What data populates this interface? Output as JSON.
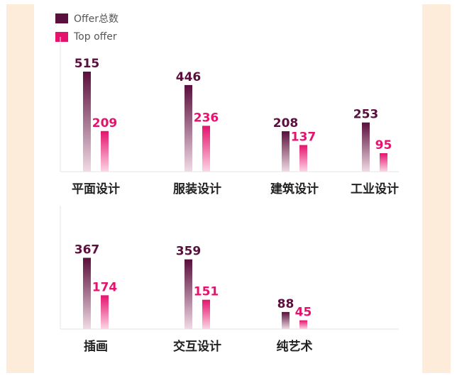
{
  "colors": {
    "offer_dark": "#5a0f3c",
    "offer_light": "#f1dbe5",
    "top_dark": "#e5126e",
    "top_light": "#fcd6e6",
    "axis": "#e6e6e6",
    "frame": "#fdecd9"
  },
  "legend": {
    "items": [
      {
        "label": "Offer总数",
        "color": "#5a0f3c"
      },
      {
        "label": "Top offer",
        "color": "#e5126e"
      }
    ]
  },
  "chart_data": [
    {
      "type": "bar",
      "categories": [
        "平面设计",
        "服装设计",
        "建筑设计",
        "工业设计"
      ],
      "series": [
        {
          "name": "Offer总数",
          "values": [
            515,
            446,
            208,
            253
          ]
        },
        {
          "name": "Top offer",
          "values": [
            209,
            236,
            137,
            95
          ]
        }
      ],
      "ylim": [
        0,
        515
      ]
    },
    {
      "type": "bar",
      "categories": [
        "插画",
        "交互设计",
        "纯艺术"
      ],
      "series": [
        {
          "name": "Offer总数",
          "values": [
            367,
            359,
            88
          ]
        },
        {
          "name": "Top offer",
          "values": [
            174,
            151,
            45
          ]
        }
      ],
      "ylim": [
        0,
        515
      ]
    }
  ]
}
